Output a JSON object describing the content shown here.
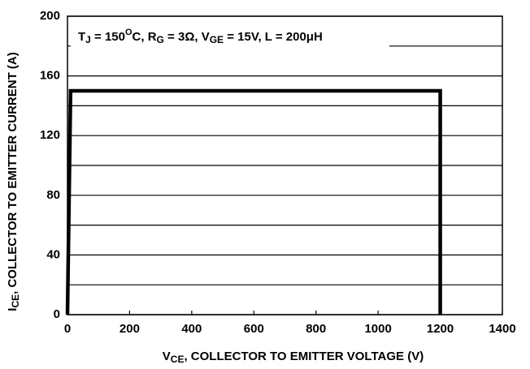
{
  "chart_data": {
    "type": "line",
    "annotation": [
      {
        "text": "T"
      },
      {
        "text": "J",
        "sub": true
      },
      {
        "text": " = 150"
      },
      {
        "text": "O",
        "sup": true
      },
      {
        "text": "C, R"
      },
      {
        "text": "G",
        "sub": true
      },
      {
        "text": " = 3Ω, V"
      },
      {
        "text": "GE",
        "sub": true
      },
      {
        "text": " = 15V, L = 200μH"
      }
    ],
    "x_label": [
      {
        "text": "V"
      },
      {
        "text": "CE",
        "sub": true
      },
      {
        "text": ", COLLECTOR TO EMITTER VOLTAGE (V)"
      }
    ],
    "y_label": [
      {
        "text": "I"
      },
      {
        "text": "CE",
        "sub": true
      },
      {
        "text": ", COLLECTOR TO EMITTER CURRENT (A)"
      }
    ],
    "series": [
      {
        "color": "#000000",
        "x": [
          0,
          10,
          1200,
          1200
        ],
        "values": [
          0,
          150,
          150,
          0
        ]
      }
    ],
    "xlim": [
      0,
      1400
    ],
    "xticks": [
      0,
      200,
      400,
      600,
      800,
      1000,
      1200,
      1400
    ],
    "ylim": [
      0,
      200
    ],
    "yticks": [
      0,
      40,
      80,
      120,
      160,
      200
    ],
    "y_minor_ticks": [
      20,
      60,
      100,
      140,
      180
    ],
    "grid": true
  }
}
